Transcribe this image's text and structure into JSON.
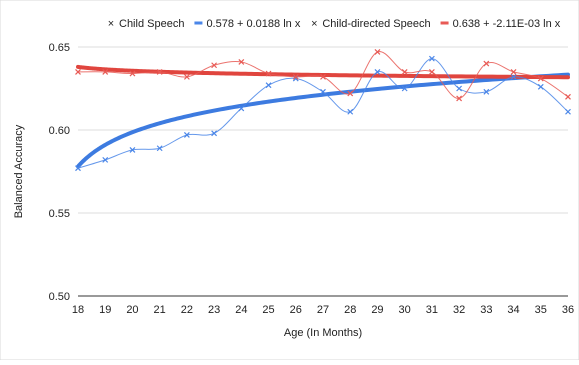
{
  "chart_data": {
    "type": "line",
    "xlabel": "Age (In Months)",
    "ylabel": "Balanced Accuracy",
    "xlim": [
      18,
      36
    ],
    "ylim": [
      0.5,
      0.65
    ],
    "x_ticks": [
      18,
      19,
      20,
      21,
      22,
      23,
      24,
      25,
      26,
      27,
      28,
      29,
      30,
      31,
      32,
      33,
      34,
      35,
      36
    ],
    "y_ticks": [
      0.5,
      0.55,
      0.6,
      0.65
    ],
    "y_tick_labels": [
      "0.50",
      "0.55",
      "0.60",
      "0.65"
    ],
    "grid": "horizontal",
    "legend": {
      "placement": "top",
      "entries": [
        {
          "label": "Child Speech",
          "marker": "×",
          "color": "#4a86e8"
        },
        {
          "label": "0.578 + 0.0188 ln x",
          "marker": "line",
          "color": "#4a86e8"
        },
        {
          "label": "Child-directed Speech",
          "marker": "×",
          "color": "#e85a55"
        },
        {
          "label": "0.638 + -2.11E-03 ln x",
          "marker": "line",
          "color": "#e85a55"
        }
      ]
    },
    "series": [
      {
        "name": "Child Speech",
        "color": "#4a86e8",
        "x": [
          18,
          19,
          20,
          21,
          22,
          23,
          24,
          25,
          26,
          27,
          28,
          29,
          30,
          31,
          32,
          33,
          34,
          35,
          36
        ],
        "values": [
          0.577,
          0.582,
          0.588,
          0.589,
          0.597,
          0.598,
          0.613,
          0.627,
          0.631,
          0.623,
          0.611,
          0.635,
          0.625,
          0.643,
          0.625,
          0.623,
          0.632,
          0.626,
          0.611
        ]
      },
      {
        "name": "Child-directed Speech",
        "color": "#e85a55",
        "x": [
          18,
          19,
          20,
          21,
          22,
          23,
          24,
          25,
          26,
          27,
          28,
          29,
          30,
          31,
          32,
          33,
          34,
          35,
          36
        ],
        "values": [
          0.635,
          0.635,
          0.634,
          0.635,
          0.632,
          0.639,
          0.641,
          0.634,
          0.632,
          0.632,
          0.622,
          0.647,
          0.635,
          0.635,
          0.619,
          0.64,
          0.635,
          0.631,
          0.62
        ]
      }
    ],
    "trendlines": [
      {
        "name": "0.578 + 0.0188 ln x",
        "color": "#3d7be0",
        "intercept": 0.578,
        "slope": 0.0188
      },
      {
        "name": "0.638 + -2.11E-03 ln x",
        "color": "#e0453e",
        "intercept": 0.638,
        "slope": -0.00211
      }
    ]
  }
}
